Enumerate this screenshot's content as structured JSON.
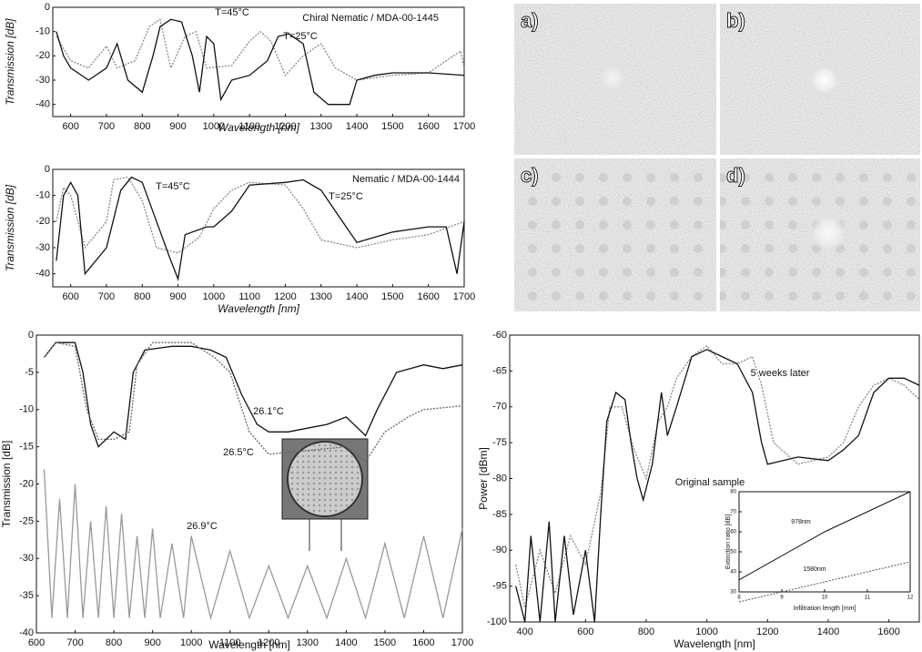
{
  "chart_data": [
    {
      "type": "line",
      "annotation": "Chiral Nematic / MDA-00-1445",
      "x_label": "Wavelength [nm]",
      "y_label": "Transmission [dB]",
      "xlim": [
        550,
        1700
      ],
      "xticks": [
        600,
        700,
        800,
        900,
        1000,
        1100,
        1200,
        1300,
        1400,
        1500,
        1600,
        1700
      ],
      "ylim": [
        -45,
        0
      ],
      "yticks": [
        0,
        -10,
        -20,
        -30,
        -40
      ],
      "series": [
        {
          "name": "T=45°C",
          "color": "#888888",
          "line_style": "dotted",
          "x": [
            560,
            600,
            650,
            700,
            730,
            780,
            820,
            850,
            880,
            920,
            950,
            980,
            1050,
            1100,
            1130,
            1160,
            1200,
            1250,
            1300,
            1340,
            1400,
            1500,
            1600,
            1650,
            1690,
            1700
          ],
          "values": [
            -12,
            -22,
            -25,
            -16,
            -25,
            -22,
            -8,
            -5,
            -25,
            -12,
            -10,
            -25,
            -24,
            -14,
            -10,
            -14,
            -28,
            -20,
            -15,
            -25,
            -30,
            -28,
            -27,
            -22,
            -18,
            -25
          ]
        },
        {
          "name": "T=25°C",
          "color": "#111111",
          "line_style": "solid",
          "x": [
            560,
            580,
            600,
            650,
            700,
            730,
            760,
            800,
            830,
            850,
            880,
            910,
            940,
            960,
            980,
            1000,
            1020,
            1050,
            1100,
            1150,
            1180,
            1210,
            1250,
            1280,
            1320,
            1380,
            1400,
            1450,
            1500,
            1600,
            1700
          ],
          "values": [
            -10,
            -20,
            -25,
            -30,
            -25,
            -15,
            -30,
            -35,
            -20,
            -8,
            -5,
            -6,
            -20,
            -35,
            -12,
            -15,
            -38,
            -30,
            -28,
            -22,
            -12,
            -11,
            -15,
            -35,
            -40,
            -40,
            -30,
            -28,
            -27,
            -27,
            -28
          ]
        }
      ]
    },
    {
      "type": "line",
      "annotation": "Nematic / MDA-00-1444",
      "x_label": "Wavelength [nm]",
      "y_label": "Transmission [dB]",
      "xlim": [
        550,
        1700
      ],
      "xticks": [
        600,
        700,
        800,
        900,
        1000,
        1100,
        1200,
        1300,
        1400,
        1500,
        1600,
        1700
      ],
      "ylim": [
        -45,
        0
      ],
      "yticks": [
        0,
        -10,
        -20,
        -30,
        -40
      ],
      "series": [
        {
          "name": "T=45°C",
          "color": "#888888",
          "line_style": "dotted",
          "x": [
            560,
            580,
            600,
            640,
            700,
            720,
            760,
            800,
            840,
            900,
            960,
            1000,
            1050,
            1100,
            1200,
            1250,
            1300,
            1400,
            1500,
            1600,
            1700
          ],
          "values": [
            -20,
            -7,
            -10,
            -30,
            -20,
            -4,
            -3,
            -12,
            -30,
            -32,
            -26,
            -15,
            -8,
            -5,
            -6,
            -15,
            -27,
            -30,
            -27,
            -25,
            -20
          ]
        },
        {
          "name": "T=25°C",
          "color": "#111111",
          "line_style": "solid",
          "x": [
            560,
            580,
            600,
            620,
            640,
            700,
            740,
            770,
            800,
            840,
            880,
            900,
            920,
            980,
            1000,
            1050,
            1100,
            1200,
            1250,
            1300,
            1350,
            1400,
            1450,
            1500,
            1600,
            1650,
            1680,
            1700
          ],
          "values": [
            -35,
            -10,
            -5,
            -10,
            -40,
            -30,
            -8,
            -3,
            -5,
            -20,
            -35,
            -42,
            -25,
            -22,
            -22,
            -16,
            -6,
            -5,
            -4,
            -8,
            -18,
            -28,
            -26,
            -24,
            -22,
            -22,
            -40,
            -20
          ]
        }
      ]
    },
    {
      "type": "line",
      "x_label": "Wavelength [nm]",
      "y_label": "Transmission [dB]",
      "xlim": [
        600,
        1700
      ],
      "xticks": [
        600,
        700,
        800,
        900,
        1000,
        1100,
        1200,
        1300,
        1400,
        1500,
        1600,
        1700
      ],
      "ylim": [
        -40,
        0
      ],
      "yticks": [
        0,
        -5,
        -10,
        -15,
        -20,
        -25,
        -30,
        -35,
        -40
      ],
      "series": [
        {
          "name": "26.1°C",
          "color": "#111111",
          "line_style": "solid",
          "x": [
            620,
            650,
            700,
            720,
            740,
            760,
            800,
            830,
            850,
            880,
            950,
            1000,
            1050,
            1090,
            1130,
            1170,
            1200,
            1250,
            1300,
            1350,
            1400,
            1450,
            1480,
            1530,
            1600,
            1650,
            1700
          ],
          "values": [
            -3,
            -1,
            -1,
            -5,
            -12,
            -15,
            -13,
            -14,
            -5,
            -2,
            -1.5,
            -1.5,
            -2,
            -3,
            -8,
            -12,
            -13,
            -13,
            -12.5,
            -12,
            -11,
            -13.5,
            -10,
            -5,
            -4,
            -4.5,
            -4
          ]
        },
        {
          "name": "26.5°C",
          "color": "#666666",
          "line_style": "dotted",
          "x": [
            620,
            650,
            700,
            730,
            760,
            800,
            840,
            860,
            900,
            1000,
            1060,
            1100,
            1150,
            1200,
            1300,
            1400,
            1450,
            1500,
            1560,
            1600,
            1700
          ],
          "values": [
            -3,
            -1,
            -1.5,
            -10,
            -14,
            -14,
            -13,
            -4,
            -1,
            -1,
            -3,
            -5,
            -13,
            -16,
            -15.5,
            -15,
            -17,
            -13,
            -11,
            -10,
            -9.5
          ]
        },
        {
          "name": "26.9°C",
          "color": "#999999",
          "line_style": "solid",
          "x": [
            620,
            640,
            660,
            680,
            700,
            720,
            740,
            760,
            780,
            800,
            820,
            840,
            860,
            880,
            900,
            920,
            950,
            980,
            1000,
            1050,
            1100,
            1150,
            1200,
            1250,
            1300,
            1350,
            1400,
            1450,
            1500,
            1550,
            1600,
            1650,
            1700
          ],
          "values": [
            -18,
            -38,
            -22,
            -38,
            -20,
            -38,
            -25,
            -38,
            -23,
            -38,
            -24,
            -38,
            -27,
            -38,
            -26,
            -38,
            -28,
            -38,
            -27,
            -38,
            -29,
            -38,
            -31,
            -38,
            -31,
            -38,
            -30,
            -38,
            -28,
            -38,
            -27,
            -38,
            -26
          ]
        }
      ]
    },
    {
      "type": "line",
      "x_label": "Wavelength [nm]",
      "y_label": "Power [dBm]",
      "xlim": [
        350,
        1700
      ],
      "xticks": [
        400,
        600,
        800,
        1000,
        1200,
        1400,
        1600
      ],
      "ylim": [
        -100,
        -60
      ],
      "yticks": [
        -60,
        -65,
        -70,
        -75,
        -80,
        -85,
        -90,
        -95,
        -100
      ],
      "series": [
        {
          "name": "5 weeks later",
          "color": "#888888",
          "line_style": "dotted",
          "x": [
            370,
            400,
            450,
            500,
            550,
            600,
            650,
            680,
            720,
            760,
            800,
            840,
            870,
            900,
            950,
            1000,
            1050,
            1100,
            1150,
            1180,
            1220,
            1300,
            1400,
            1450,
            1500,
            1550,
            1600,
            1650,
            1700
          ],
          "values": [
            -92,
            -98,
            -90,
            -96,
            -88,
            -92,
            -82,
            -70,
            -70,
            -76,
            -80,
            -72,
            -70,
            -66,
            -63,
            -61.5,
            -64,
            -64,
            -63,
            -67,
            -75,
            -78,
            -77,
            -75,
            -70,
            -67,
            -66,
            -67,
            -69
          ]
        },
        {
          "name": "Original sample",
          "color": "#111111",
          "line_style": "solid",
          "x": [
            370,
            400,
            420,
            450,
            480,
            500,
            530,
            560,
            600,
            630,
            650,
            670,
            700,
            730,
            750,
            770,
            790,
            820,
            850,
            870,
            900,
            950,
            1000,
            1050,
            1100,
            1150,
            1180,
            1200,
            1300,
            1400,
            1450,
            1500,
            1550,
            1600,
            1650,
            1700
          ],
          "values": [
            -95,
            -100,
            -88,
            -100,
            -86,
            -100,
            -88,
            -99,
            -90,
            -100,
            -85,
            -72,
            -68,
            -69,
            -75,
            -80,
            -83,
            -78,
            -68,
            -74,
            -70,
            -63,
            -62,
            -63,
            -64,
            -68,
            -75,
            -78,
            -77,
            -77.5,
            -76,
            -74,
            -68,
            -66,
            -66,
            -67
          ]
        }
      ]
    },
    {
      "type": "line",
      "x_label": "Infiltration length [mm]",
      "y_label": "Extinction ratio [dB]",
      "xlim": [
        8,
        12
      ],
      "xticks": [
        8,
        9,
        10,
        11,
        12
      ],
      "ylim": [
        30,
        80
      ],
      "yticks": [
        30,
        40,
        50,
        60,
        70,
        80
      ],
      "series": [
        {
          "name": "978nm",
          "color": "#111111",
          "line_style": "solid",
          "x": [
            8,
            10,
            12
          ],
          "values": [
            36,
            60,
            80
          ]
        },
        {
          "name": "1580nm",
          "color": "#555555",
          "line_style": "dotted",
          "x": [
            8,
            10,
            12
          ],
          "values": [
            25,
            35,
            45
          ]
        }
      ]
    }
  ],
  "panels": {
    "labels": [
      "a)",
      "b)",
      "c)",
      "d)"
    ]
  }
}
